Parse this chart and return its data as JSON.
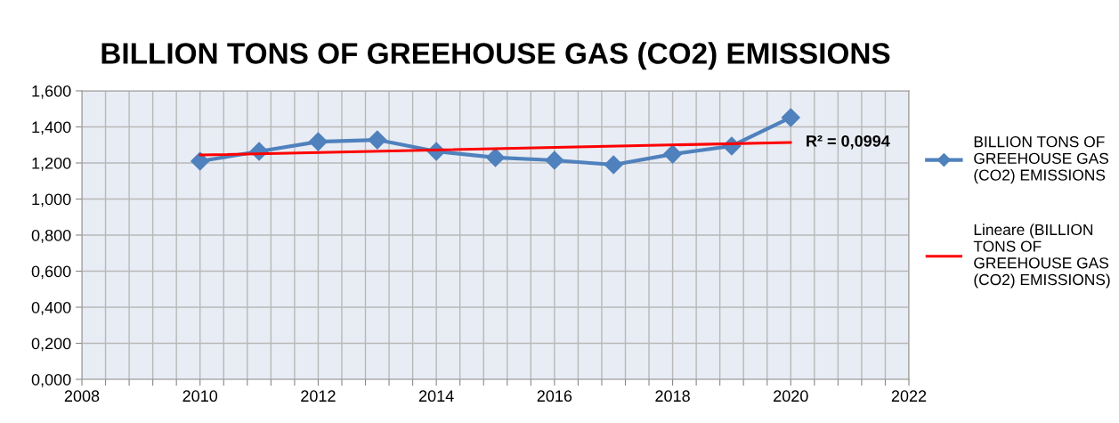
{
  "chart_data": {
    "type": "line",
    "title": "BILLION TONS OF GREEHOUSE GAS (CO2) EMISSIONS",
    "x": [
      2010,
      2011,
      2012,
      2013,
      2014,
      2015,
      2016,
      2017,
      2018,
      2019,
      2020
    ],
    "series": [
      {
        "name": "BILLION TONS OF\nGREEHOUSE GAS\n(CO2) EMISSIONS",
        "color": "#4f81bd",
        "marker": "diamond",
        "values": [
          1.21,
          1.264,
          1.318,
          1.328,
          1.264,
          1.23,
          1.215,
          1.19,
          1.249,
          1.294,
          1.452
        ]
      },
      {
        "name": "Lineare (BILLION\nTONS OF\nGREEHOUSE GAS\n(CO2) EMISSIONS)",
        "color": "#ff0000",
        "marker": "none",
        "x": [
          2010,
          2020
        ],
        "values": [
          1.244,
          1.314
        ]
      }
    ],
    "annotations": [
      {
        "text": "R² = 0,0994",
        "x": 2020,
        "y": 1.314
      }
    ],
    "xlim": [
      2008,
      2022
    ],
    "xticks": [
      2008,
      {
        "value": 2008.4,
        "label": null
      },
      {
        "value": 2008.8,
        "label": null
      },
      {
        "value": 2009.2,
        "label": null
      },
      {
        "value": 2009.6,
        "label": null
      },
      2010,
      {
        "value": 2010.4,
        "label": null
      },
      {
        "value": 2010.8,
        "label": null
      },
      {
        "value": 2011.2,
        "label": null
      },
      {
        "value": 2011.6,
        "label": null
      },
      2012,
      {
        "value": 2012.4,
        "label": null
      },
      {
        "value": 2012.8,
        "label": null
      },
      {
        "value": 2013.2,
        "label": null
      },
      {
        "value": 2013.6,
        "label": null
      },
      2014,
      {
        "value": 2014.4,
        "label": null
      },
      {
        "value": 2014.8,
        "label": null
      },
      {
        "value": 2015.2,
        "label": null
      },
      {
        "value": 2015.6,
        "label": null
      },
      2016,
      {
        "value": 2016.4,
        "label": null
      },
      {
        "value": 2016.8,
        "label": null
      },
      {
        "value": 2017.2,
        "label": null
      },
      {
        "value": 2017.6,
        "label": null
      },
      2018,
      {
        "value": 2018.4,
        "label": null
      },
      {
        "value": 2018.8,
        "label": null
      },
      {
        "value": 2019.2,
        "label": null
      },
      {
        "value": 2019.6,
        "label": null
      },
      2020,
      {
        "value": 2020.4,
        "label": null
      },
      {
        "value": 2020.8,
        "label": null
      },
      {
        "value": 2021.2,
        "label": null
      },
      {
        "value": 2021.6,
        "label": null
      },
      2022
    ],
    "ylim": [
      0,
      1.6
    ],
    "yticks": [
      {
        "value": 0,
        "label": "0,000"
      },
      {
        "value": 0.2,
        "label": "0,200"
      },
      {
        "value": 0.4,
        "label": "0,400"
      },
      {
        "value": 0.6,
        "label": "0,600"
      },
      {
        "value": 0.8,
        "label": "0,800"
      },
      {
        "value": 1.0,
        "label": "1,000"
      },
      {
        "value": 1.2,
        "label": "1,200"
      },
      {
        "value": 1.4,
        "label": "1,400"
      },
      {
        "value": 1.6,
        "label": "1,600"
      }
    ],
    "grid": true,
    "legend": "right",
    "line_style": "solid"
  }
}
